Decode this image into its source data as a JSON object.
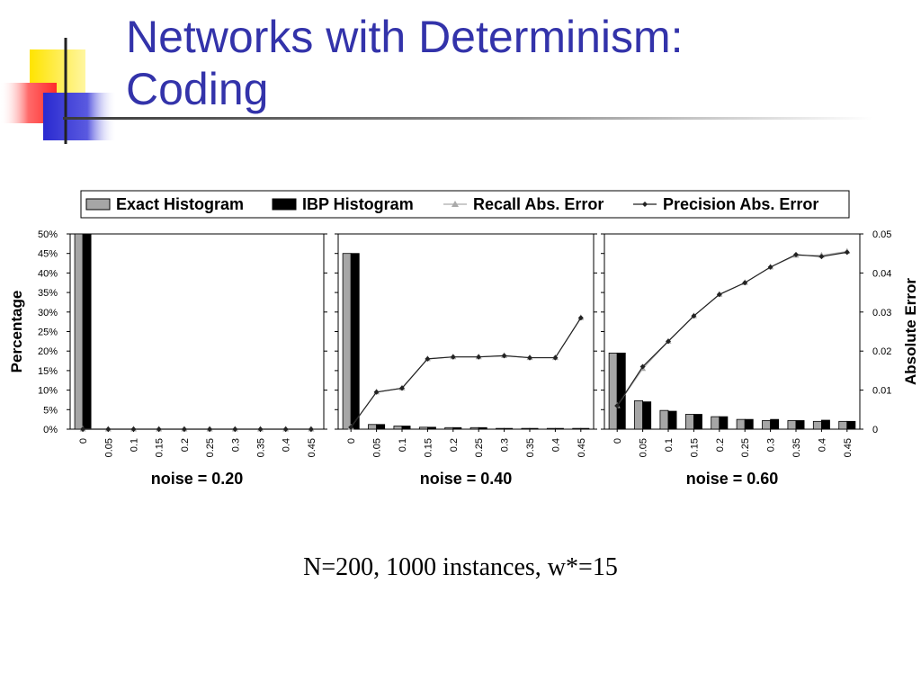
{
  "slide": {
    "title_line1": "Networks with Determinism:",
    "title_line2": "Coding",
    "caption": "N=200, 1000 instances, w*=15",
    "title_color": "#3333aa"
  },
  "chart_data": {
    "type": "bar",
    "legend": {
      "position": "top",
      "entries": [
        {
          "label": "Exact Histogram",
          "kind": "bar",
          "color": "#a6a6a6"
        },
        {
          "label": "IBP Histogram",
          "kind": "bar",
          "color": "#000000"
        },
        {
          "label": "Recall Abs. Error",
          "kind": "line",
          "color": "#aaaaaa"
        },
        {
          "label": "Precision Abs. Error",
          "kind": "line",
          "color": "#222222"
        }
      ]
    },
    "y_left": {
      "label": "Percentage",
      "range": [
        0,
        50
      ],
      "ticks": [
        "0%",
        "5%",
        "10%",
        "15%",
        "20%",
        "25%",
        "30%",
        "35%",
        "40%",
        "45%",
        "50%"
      ]
    },
    "y_right": {
      "label": "Absolute Error",
      "range": [
        0,
        0.05
      ],
      "ticks": [
        "0",
        "0.01",
        "0.02",
        "0.03",
        "0.04",
        "0.05"
      ]
    },
    "categories": [
      "0",
      "0.05",
      "0.1",
      "0.15",
      "0.2",
      "0.25",
      "0.3",
      "0.35",
      "0.4",
      "0.45"
    ],
    "panels": [
      {
        "xlabel": "noise = 0.20",
        "series": [
          {
            "name": "Exact Histogram",
            "values": [
              50,
              0,
              0,
              0,
              0,
              0,
              0,
              0,
              0,
              0
            ]
          },
          {
            "name": "IBP Histogram",
            "values": [
              50,
              0,
              0,
              0,
              0,
              0,
              0,
              0,
              0,
              0
            ]
          },
          {
            "name": "Recall Abs. Error",
            "values": [
              0,
              0,
              0,
              0,
              0,
              0,
              0,
              0,
              0,
              0
            ]
          },
          {
            "name": "Precision Abs. Error",
            "values": [
              0,
              0,
              0,
              0,
              0,
              0,
              0,
              0,
              0,
              0
            ]
          }
        ]
      },
      {
        "xlabel": "noise = 0.40",
        "series": [
          {
            "name": "Exact Histogram",
            "values": [
              45,
              1.2,
              0.8,
              0.5,
              0.4,
              0.4,
              0.2,
              0.2,
              0.2,
              0.2
            ]
          },
          {
            "name": "IBP Histogram",
            "values": [
              45,
              1.2,
              0.8,
              0.5,
              0.4,
              0.4,
              0.2,
              0.2,
              0.2,
              0.2
            ]
          },
          {
            "name": "Recall Abs. Error",
            "values": [
              0.0005,
              0.0095,
              0.0105,
              0.018,
              0.0185,
              0.0185,
              0.0188,
              0.0183,
              0.0183,
              0.0285
            ]
          },
          {
            "name": "Precision Abs. Error",
            "values": [
              0.0005,
              0.0095,
              0.0105,
              0.018,
              0.0185,
              0.0185,
              0.0188,
              0.0183,
              0.0183,
              0.0285
            ]
          }
        ]
      },
      {
        "xlabel": "noise = 0.60",
        "series": [
          {
            "name": "Exact Histogram",
            "values": [
              19.5,
              7.3,
              4.8,
              3.8,
              3.2,
              2.5,
              2.2,
              2.2,
              2.0,
              2.0
            ]
          },
          {
            "name": "IBP Histogram",
            "values": [
              19.5,
              7.0,
              4.6,
              3.8,
              3.2,
              2.5,
              2.5,
              2.2,
              2.3,
              2.0
            ]
          },
          {
            "name": "Recall Abs. Error",
            "values": [
              0.006,
              0.0155,
              0.0225,
              0.029,
              0.0345,
              0.0375,
              0.0415,
              0.0445,
              0.0445,
              0.0455
            ]
          },
          {
            "name": "Precision Abs. Error",
            "values": [
              0.006,
              0.016,
              0.0225,
              0.029,
              0.0345,
              0.0375,
              0.0415,
              0.0447,
              0.0442,
              0.0453
            ]
          }
        ]
      }
    ]
  }
}
